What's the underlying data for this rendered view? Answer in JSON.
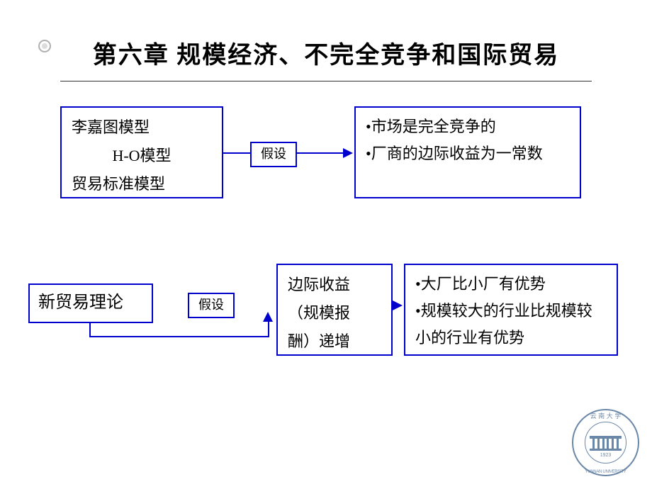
{
  "title": "第六章 规模经济、不完全竞争和国际贸易",
  "row1": {
    "models": {
      "line1": "李嘉图模型",
      "line2": "H-O模型",
      "line3": "贸易标准模型"
    },
    "assume_label": "假设",
    "results": {
      "bullet1": "•市场是完全竞争的",
      "bullet2": "•厂商的边际收益为一常数"
    }
  },
  "row2": {
    "theory": "新贸易理论",
    "assume_label": "假设",
    "middle": {
      "line1": "边际收益",
      "line2": "（规模报",
      "line3": "酬）递增"
    },
    "results": {
      "bullet1": "•大厂比小厂有优势",
      "bullet2": "•规模较大的行业比规模较小的行业有优势"
    }
  },
  "logo": {
    "top_text": "云 南 大 学",
    "year": "1923",
    "bottom_text": "YUNNAN UNIVERSITY"
  },
  "colors": {
    "border": "#0000cc",
    "text": "#000000",
    "background": "#ffffff",
    "logo": "#3a5f8a"
  }
}
